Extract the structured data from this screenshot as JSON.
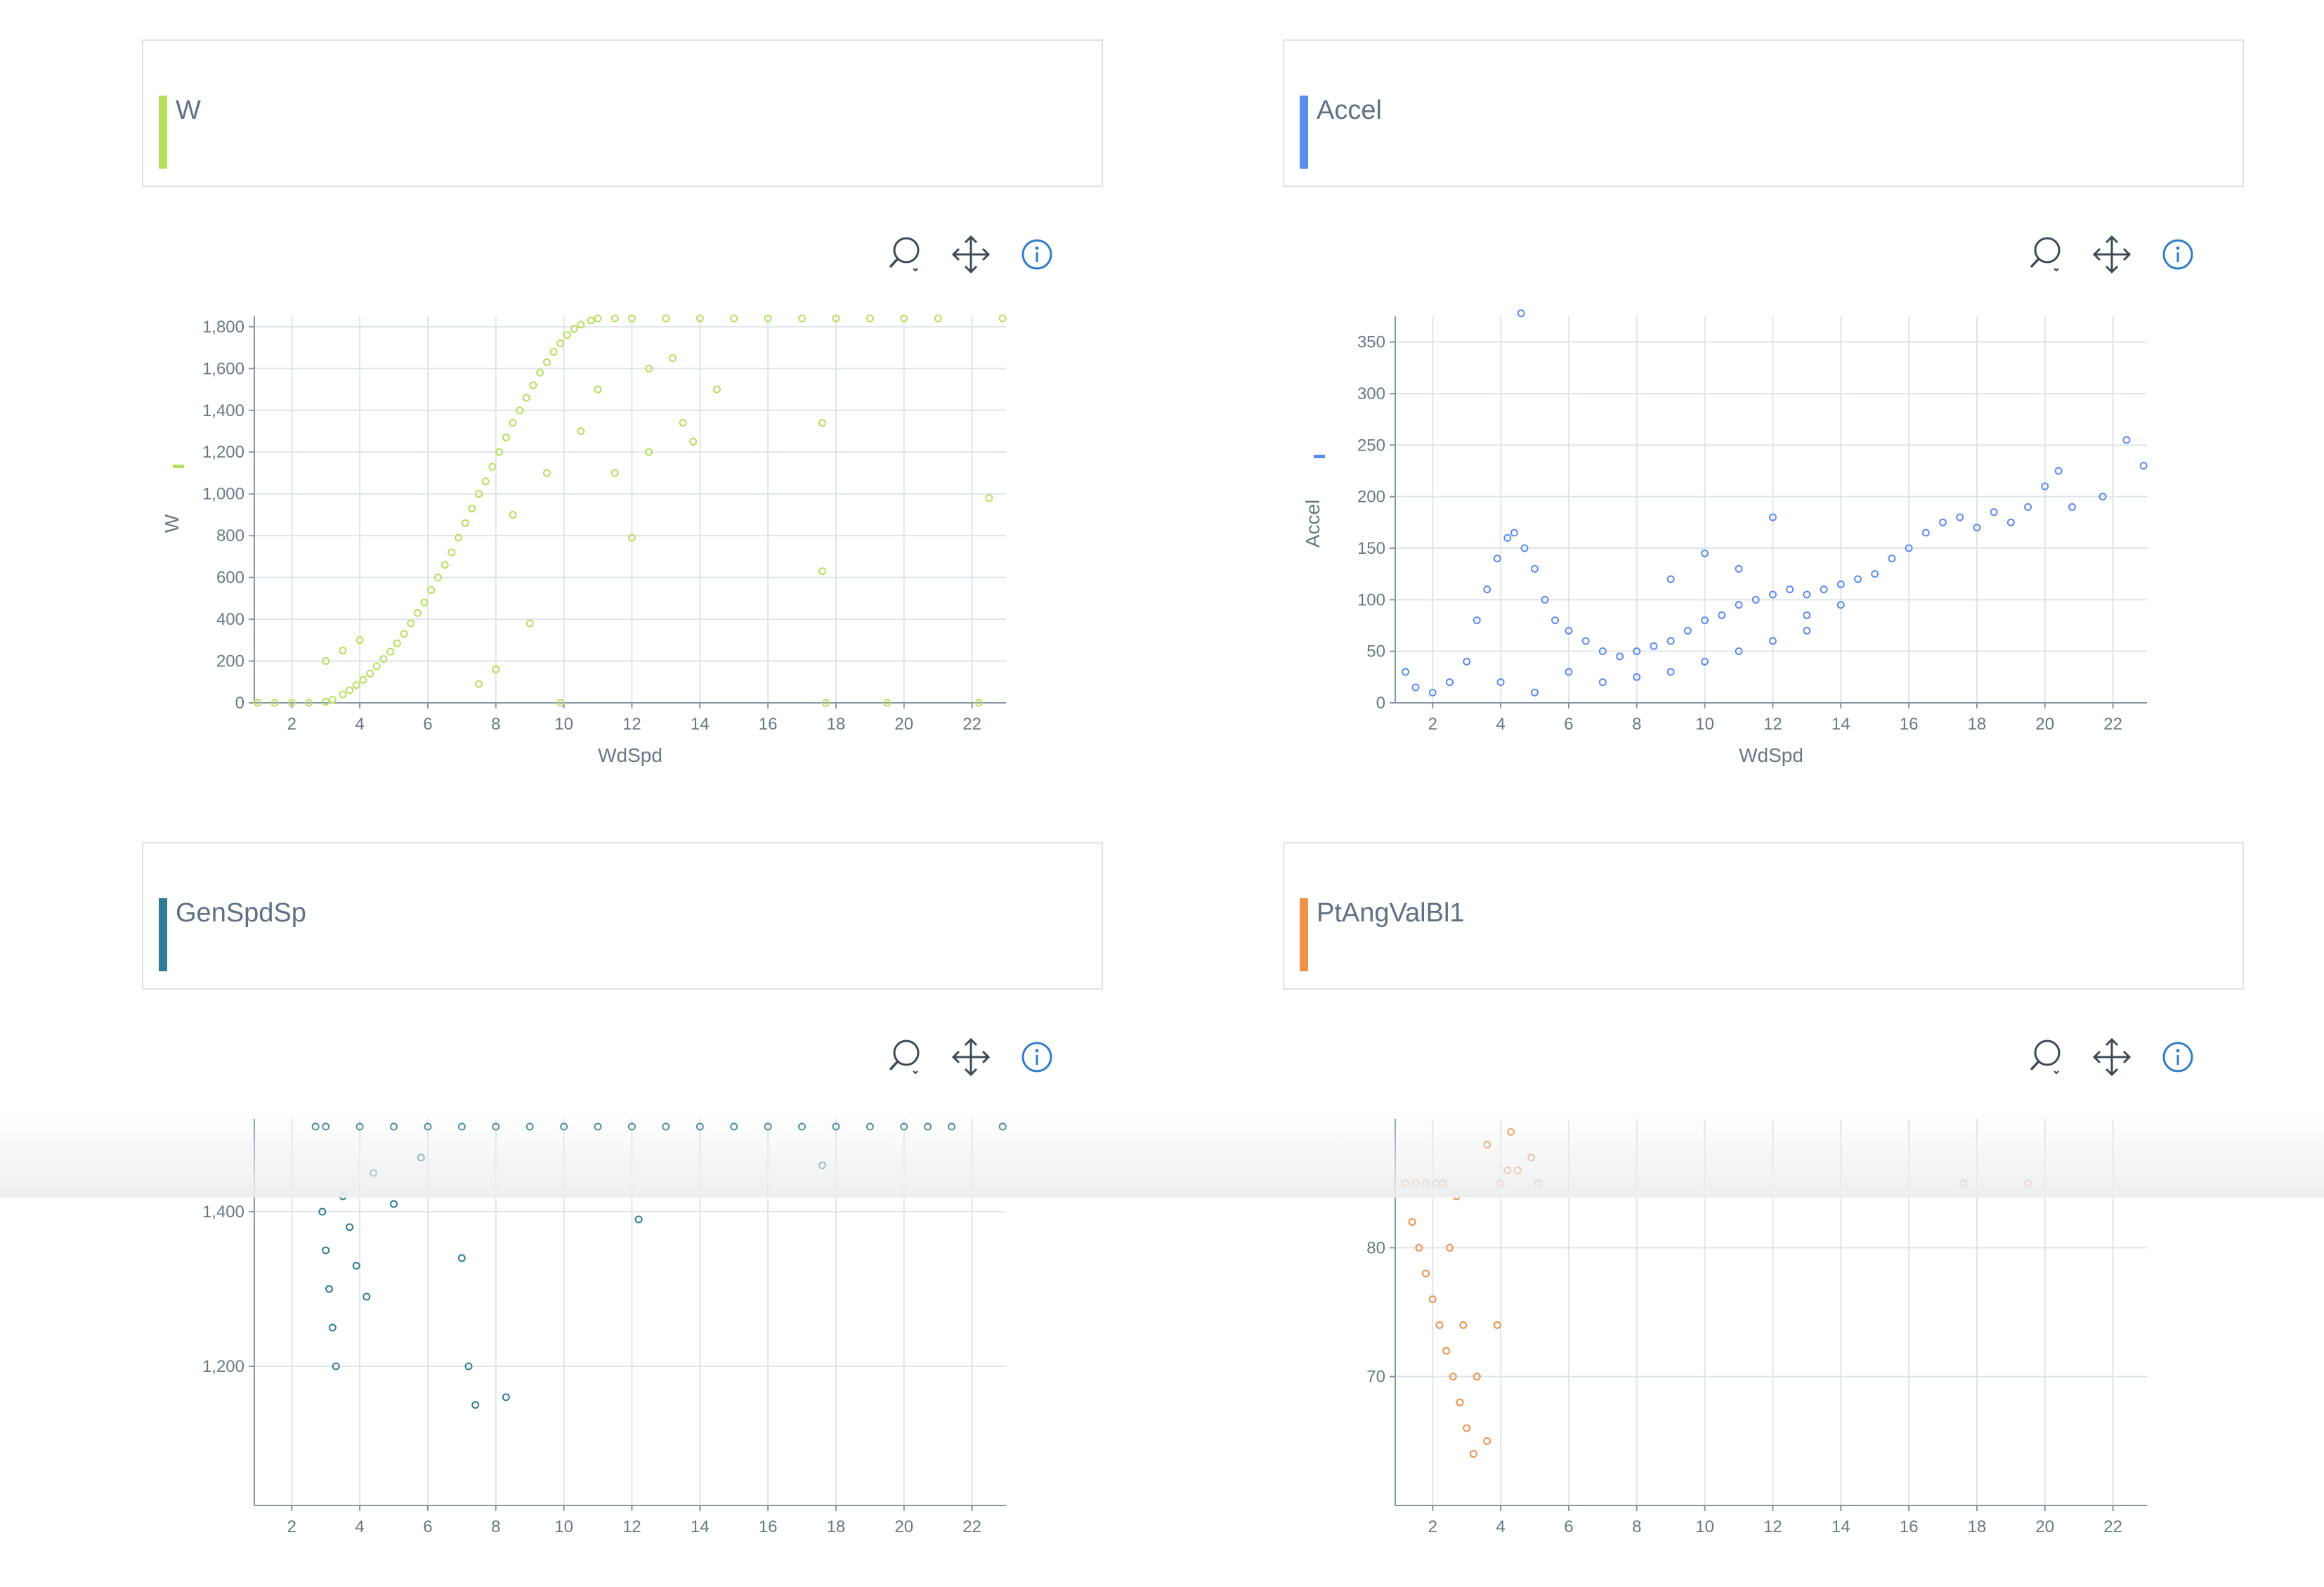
{
  "panels": [
    {
      "title": "W",
      "color": "#b6e05c",
      "tools": [
        "zoom-icon",
        "pan-icon",
        "info-icon"
      ],
      "chart_data": {
        "type": "scatter",
        "xlabel": "WdSpd",
        "ylabel": "W",
        "xlim": [
          0.9,
          23
        ],
        "ylim": [
          0,
          1850
        ],
        "xticks": [
          2,
          4,
          6,
          8,
          10,
          12,
          14,
          16,
          18,
          20,
          22
        ],
        "yticks": [
          0,
          200,
          400,
          600,
          800,
          1000,
          1200,
          1400,
          1600,
          1800
        ],
        "ytick_labels": [
          "0",
          "200",
          "400",
          "600",
          "800",
          "1,000",
          "1,200",
          "1,400",
          "1,600",
          "1,800"
        ],
        "series_color": "#b6e05c",
        "legend": "left-of-y-axis",
        "grid": true,
        "points": [
          [
            1.0,
            0
          ],
          [
            1.5,
            0
          ],
          [
            2.0,
            0
          ],
          [
            2.5,
            0
          ],
          [
            3.0,
            5
          ],
          [
            3.2,
            15
          ],
          [
            3.5,
            40
          ],
          [
            3.7,
            60
          ],
          [
            3.9,
            85
          ],
          [
            4.1,
            110
          ],
          [
            4.3,
            140
          ],
          [
            4.5,
            175
          ],
          [
            4.7,
            210
          ],
          [
            4.9,
            245
          ],
          [
            5.1,
            285
          ],
          [
            5.3,
            330
          ],
          [
            5.5,
            380
          ],
          [
            5.7,
            430
          ],
          [
            5.9,
            480
          ],
          [
            6.1,
            540
          ],
          [
            6.3,
            600
          ],
          [
            6.5,
            660
          ],
          [
            6.7,
            720
          ],
          [
            6.9,
            790
          ],
          [
            7.1,
            860
          ],
          [
            7.3,
            930
          ],
          [
            7.5,
            1000
          ],
          [
            7.7,
            1060
          ],
          [
            7.9,
            1130
          ],
          [
            8.1,
            1200
          ],
          [
            8.3,
            1270
          ],
          [
            8.5,
            1340
          ],
          [
            8.7,
            1400
          ],
          [
            8.9,
            1460
          ],
          [
            9.1,
            1520
          ],
          [
            9.3,
            1580
          ],
          [
            9.5,
            1630
          ],
          [
            9.7,
            1680
          ],
          [
            9.9,
            1720
          ],
          [
            10.1,
            1760
          ],
          [
            10.3,
            1790
          ],
          [
            10.5,
            1810
          ],
          [
            10.8,
            1830
          ],
          [
            11.0,
            1840
          ],
          [
            11.5,
            1840
          ],
          [
            12.0,
            1840
          ],
          [
            13.0,
            1840
          ],
          [
            14.0,
            1840
          ],
          [
            15.0,
            1840
          ],
          [
            16.0,
            1840
          ],
          [
            17.0,
            1840
          ],
          [
            18.0,
            1840
          ],
          [
            19.0,
            1840
          ],
          [
            20.0,
            1840
          ],
          [
            21.0,
            1840
          ],
          [
            22.9,
            1840
          ],
          [
            22.5,
            980
          ],
          [
            17.6,
            1340
          ],
          [
            17.6,
            630
          ],
          [
            12.0,
            790
          ],
          [
            9.0,
            380
          ],
          [
            8.0,
            160
          ],
          [
            7.5,
            90
          ],
          [
            9.9,
            0
          ],
          [
            17.7,
            0
          ],
          [
            19.5,
            0
          ],
          [
            22.2,
            0
          ],
          [
            13.5,
            1340
          ],
          [
            12.5,
            1200
          ],
          [
            11.5,
            1100
          ],
          [
            14.5,
            1500
          ],
          [
            13.8,
            1250
          ],
          [
            3.0,
            200
          ],
          [
            3.5,
            250
          ],
          [
            4.0,
            300
          ],
          [
            8.5,
            900
          ],
          [
            9.5,
            1100
          ],
          [
            10.5,
            1300
          ],
          [
            11.0,
            1500
          ],
          [
            12.5,
            1600
          ],
          [
            13.2,
            1650
          ]
        ]
      }
    },
    {
      "title": "Accel",
      "color": "#5b8cf2",
      "tools": [
        "zoom-icon",
        "pan-icon",
        "info-icon"
      ],
      "chart_data": {
        "type": "scatter",
        "xlabel": "WdSpd",
        "ylabel": "Accel",
        "xlim": [
          0.9,
          23
        ],
        "ylim": [
          0,
          375
        ],
        "xticks": [
          2,
          4,
          6,
          8,
          10,
          12,
          14,
          16,
          18,
          20,
          22
        ],
        "yticks": [
          0,
          50,
          100,
          150,
          200,
          250,
          300,
          350
        ],
        "ytick_labels": [
          "0",
          "50",
          "100",
          "150",
          "200",
          "250",
          "300",
          "350"
        ],
        "series_color": "#5b8cf2",
        "legend": "left-of-y-axis",
        "grid": true,
        "points": [
          [
            4.6,
            378
          ],
          [
            1.2,
            30
          ],
          [
            1.5,
            15
          ],
          [
            2.0,
            10
          ],
          [
            2.5,
            20
          ],
          [
            3.0,
            40
          ],
          [
            3.3,
            80
          ],
          [
            3.6,
            110
          ],
          [
            3.9,
            140
          ],
          [
            4.2,
            160
          ],
          [
            4.4,
            165
          ],
          [
            4.7,
            150
          ],
          [
            5.0,
            130
          ],
          [
            5.3,
            100
          ],
          [
            5.6,
            80
          ],
          [
            6.0,
            70
          ],
          [
            6.5,
            60
          ],
          [
            7.0,
            50
          ],
          [
            7.5,
            45
          ],
          [
            8.0,
            50
          ],
          [
            8.5,
            55
          ],
          [
            9.0,
            60
          ],
          [
            9.5,
            70
          ],
          [
            10.0,
            80
          ],
          [
            10.5,
            85
          ],
          [
            11.0,
            95
          ],
          [
            11.5,
            100
          ],
          [
            12.0,
            105
          ],
          [
            12.5,
            110
          ],
          [
            13.0,
            105
          ],
          [
            13.5,
            110
          ],
          [
            14.0,
            115
          ],
          [
            14.5,
            120
          ],
          [
            15.0,
            125
          ],
          [
            15.5,
            140
          ],
          [
            16.0,
            150
          ],
          [
            16.5,
            165
          ],
          [
            17.0,
            175
          ],
          [
            17.5,
            180
          ],
          [
            18.0,
            170
          ],
          [
            18.5,
            185
          ],
          [
            19.0,
            175
          ],
          [
            19.5,
            190
          ],
          [
            20.0,
            210
          ],
          [
            20.4,
            225
          ],
          [
            20.8,
            190
          ],
          [
            21.7,
            200
          ],
          [
            22.4,
            255
          ],
          [
            22.9,
            230
          ],
          [
            4.0,
            20
          ],
          [
            5.0,
            10
          ],
          [
            6.0,
            30
          ],
          [
            7.0,
            20
          ],
          [
            8.0,
            25
          ],
          [
            9.0,
            30
          ],
          [
            10.0,
            40
          ],
          [
            11.0,
            50
          ],
          [
            12.0,
            60
          ],
          [
            13.0,
            70
          ],
          [
            12.0,
            180
          ],
          [
            10.0,
            145
          ],
          [
            9.0,
            120
          ],
          [
            11.0,
            130
          ],
          [
            14.0,
            95
          ],
          [
            13.0,
            85
          ]
        ]
      }
    },
    {
      "title": "GenSpdSp",
      "color": "#2f7c94",
      "tools": [
        "zoom-icon",
        "pan-icon",
        "info-icon"
      ],
      "chart_data": {
        "type": "scatter",
        "xlabel": "",
        "ylabel": "",
        "xlim": [
          0.9,
          23
        ],
        "ylim": [
          1020,
          1520
        ],
        "xticks": [
          2,
          4,
          6,
          8,
          10,
          12,
          14,
          16,
          18,
          20,
          22
        ],
        "yticks": [
          1200,
          1400
        ],
        "ytick_labels": [
          "1,200",
          "1,400"
        ],
        "series_color": "#2f7c94",
        "legend": "left-of-y-axis",
        "grid": true,
        "points": [
          [
            2.7,
            1510
          ],
          [
            3.0,
            1510
          ],
          [
            4.0,
            1510
          ],
          [
            5.0,
            1510
          ],
          [
            6.0,
            1510
          ],
          [
            7.0,
            1510
          ],
          [
            8.0,
            1510
          ],
          [
            9.0,
            1510
          ],
          [
            10.0,
            1510
          ],
          [
            11.0,
            1510
          ],
          [
            12.0,
            1510
          ],
          [
            13.0,
            1510
          ],
          [
            14.0,
            1510
          ],
          [
            15.0,
            1510
          ],
          [
            16.0,
            1510
          ],
          [
            17.0,
            1510
          ],
          [
            18.0,
            1510
          ],
          [
            19.0,
            1510
          ],
          [
            20.0,
            1510
          ],
          [
            20.7,
            1510
          ],
          [
            21.4,
            1510
          ],
          [
            22.9,
            1510
          ],
          [
            2.9,
            1400
          ],
          [
            3.0,
            1350
          ],
          [
            3.1,
            1300
          ],
          [
            3.2,
            1250
          ],
          [
            3.3,
            1200
          ],
          [
            3.5,
            1420
          ],
          [
            3.7,
            1380
          ],
          [
            3.9,
            1330
          ],
          [
            4.2,
            1290
          ],
          [
            4.4,
            1450
          ],
          [
            5.0,
            1410
          ],
          [
            5.8,
            1470
          ],
          [
            7.0,
            1340
          ],
          [
            7.2,
            1200
          ],
          [
            7.4,
            1150
          ],
          [
            8.3,
            1160
          ],
          [
            12.2,
            1390
          ],
          [
            17.6,
            1460
          ]
        ]
      }
    },
    {
      "title": "PtAngValBl1",
      "color": "#f0914a",
      "tools": [
        "zoom-icon",
        "pan-icon",
        "info-icon"
      ],
      "chart_data": {
        "type": "scatter",
        "xlabel": "",
        "ylabel": "",
        "xlim": [
          0.9,
          23
        ],
        "ylim": [
          60,
          90
        ],
        "xticks": [
          2,
          4,
          6,
          8,
          10,
          12,
          14,
          16,
          18,
          20,
          22
        ],
        "yticks": [
          70,
          80
        ],
        "ytick_labels": [
          "70",
          "80"
        ],
        "series_color": "#f0914a",
        "legend": "left-of-y-axis",
        "grid": true,
        "points": [
          [
            1.2,
            85
          ],
          [
            1.5,
            85
          ],
          [
            1.8,
            85
          ],
          [
            2.1,
            85
          ],
          [
            2.3,
            85
          ],
          [
            1.4,
            82
          ],
          [
            1.6,
            80
          ],
          [
            1.8,
            78
          ],
          [
            2.0,
            76
          ],
          [
            2.2,
            74
          ],
          [
            2.4,
            72
          ],
          [
            2.6,
            70
          ],
          [
            2.8,
            68
          ],
          [
            3.0,
            66
          ],
          [
            3.2,
            64
          ],
          [
            2.5,
            80
          ],
          [
            2.9,
            74
          ],
          [
            3.3,
            70
          ],
          [
            3.6,
            65
          ],
          [
            2.7,
            84
          ],
          [
            3.6,
            88
          ],
          [
            4.0,
            85
          ],
          [
            4.2,
            86
          ],
          [
            4.5,
            86
          ],
          [
            4.3,
            89
          ],
          [
            4.9,
            87
          ],
          [
            5.1,
            85
          ],
          [
            3.9,
            74
          ],
          [
            17.6,
            85
          ],
          [
            19.5,
            85
          ]
        ]
      }
    }
  ]
}
